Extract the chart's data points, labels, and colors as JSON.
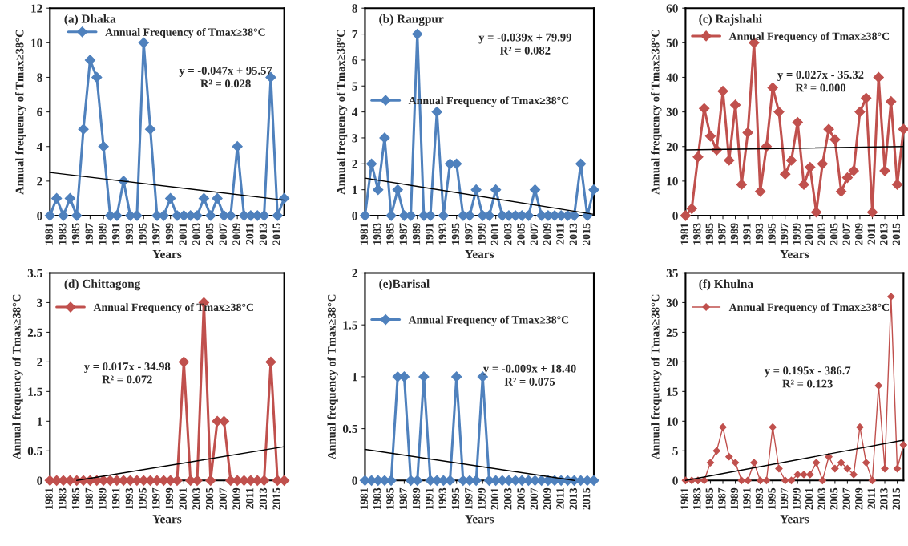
{
  "chart_data": [
    {
      "type": "line",
      "title": "(a) Dhaka",
      "xlabel": "Years",
      "ylabel": "Annual frequency of Tmax≥38°C",
      "annotations": [
        "y = -0.047x + 95.57\nR² = 0.028"
      ],
      "legend": "top",
      "xlim": [
        1981,
        2016
      ],
      "xticks": [
        1981,
        1983,
        1985,
        1987,
        1989,
        1991,
        1993,
        1995,
        1997,
        1999,
        2001,
        2003,
        2005,
        2007,
        2009,
        2011,
        2013,
        2015
      ],
      "ylim": [
        0,
        12
      ],
      "yticks": [
        0,
        2,
        4,
        6,
        8,
        10,
        12
      ],
      "x": [
        1981,
        1982,
        1983,
        1984,
        1985,
        1986,
        1987,
        1988,
        1989,
        1990,
        1991,
        1992,
        1993,
        1994,
        1995,
        1996,
        1997,
        1998,
        1999,
        2000,
        2001,
        2002,
        2003,
        2004,
        2005,
        2006,
        2007,
        2008,
        2009,
        2010,
        2011,
        2012,
        2013,
        2014,
        2015,
        2016
      ],
      "series": [
        {
          "name": "Annual Frequency of Tmax≥38°C",
          "color": "#4f81bd",
          "marker": "diamond",
          "values": [
            0,
            1,
            0,
            1,
            0,
            5,
            9,
            8,
            4,
            0,
            0,
            2,
            0,
            0,
            10,
            5,
            0,
            0,
            1,
            0,
            0,
            0,
            0,
            1,
            0,
            1,
            0,
            0,
            4,
            0,
            0,
            0,
            0,
            8,
            0,
            1
          ]
        },
        {
          "type": "line",
          "color": "#000000",
          "marker": "none",
          "x": [
            1981,
            2016
          ],
          "values": [
            2.5,
            0.9
          ]
        }
      ]
    },
    {
      "type": "line",
      "title": "(b) Rangpur",
      "xlabel": "Years",
      "ylabel": "Annual frequency of Tmax≥38°C",
      "annotations": [
        "y = -0.039x + 79.99\nR² = 0.082"
      ],
      "legend": "left",
      "xlim": [
        1981,
        2016
      ],
      "xticks": [
        1981,
        1983,
        1985,
        1987,
        1989,
        1991,
        1993,
        1995,
        1997,
        1999,
        2001,
        2003,
        2005,
        2007,
        2009,
        2011,
        2013,
        2015
      ],
      "ylim": [
        0,
        8
      ],
      "yticks": [
        0,
        1,
        2,
        3,
        4,
        5,
        6,
        7,
        8
      ],
      "x": [
        1981,
        1982,
        1983,
        1984,
        1985,
        1986,
        1987,
        1988,
        1989,
        1990,
        1991,
        1992,
        1993,
        1994,
        1995,
        1996,
        1997,
        1998,
        1999,
        2000,
        2001,
        2002,
        2003,
        2004,
        2005,
        2006,
        2007,
        2008,
        2009,
        2010,
        2011,
        2012,
        2013,
        2014,
        2015,
        2016
      ],
      "series": [
        {
          "name": "Annual Frequency of Tmax≥38°C",
          "color": "#4f81bd",
          "marker": "diamond",
          "values": [
            0,
            2,
            1,
            3,
            0,
            1,
            0,
            0,
            7,
            0,
            0,
            4,
            0,
            2,
            2,
            0,
            0,
            1,
            0,
            0,
            1,
            0,
            0,
            0,
            0,
            0,
            1,
            0,
            0,
            0,
            0,
            0,
            0,
            2,
            0,
            1
          ]
        },
        {
          "type": "line",
          "color": "#000000",
          "marker": "none",
          "x": [
            1981,
            2016
          ],
          "values": [
            1.45,
            0.05
          ]
        }
      ]
    },
    {
      "type": "line",
      "title": "(c) Rajshahi",
      "xlabel": "Years",
      "ylabel": "Annual frequency of Tmax≥38°C",
      "annotations": [
        "y = 0.027x - 35.32\nR² = 0.000"
      ],
      "legend": "top left",
      "xlim": [
        1981,
        2016
      ],
      "xticks": [
        1981,
        1983,
        1985,
        1987,
        1989,
        1991,
        1993,
        1995,
        1997,
        1999,
        2001,
        2003,
        2005,
        2007,
        2009,
        2011,
        2013,
        2015
      ],
      "ylim": [
        0,
        60
      ],
      "yticks": [
        0,
        10,
        20,
        30,
        40,
        50,
        60
      ],
      "x": [
        1981,
        1982,
        1983,
        1984,
        1985,
        1986,
        1987,
        1988,
        1989,
        1990,
        1991,
        1992,
        1993,
        1994,
        1995,
        1996,
        1997,
        1998,
        1999,
        2000,
        2001,
        2002,
        2003,
        2004,
        2005,
        2006,
        2007,
        2008,
        2009,
        2010,
        2011,
        2012,
        2013,
        2014,
        2015,
        2016
      ],
      "series": [
        {
          "name": "Annual Frequency of Tmax≥38°C",
          "color": "#c0504d",
          "marker": "diamond",
          "values": [
            0,
            2,
            17,
            31,
            23,
            19,
            36,
            16,
            32,
            9,
            24,
            50,
            7,
            20,
            37,
            30,
            12,
            16,
            27,
            9,
            14,
            1,
            15,
            25,
            22,
            7,
            11,
            13,
            30,
            34,
            1,
            40,
            13,
            33,
            9,
            25
          ]
        },
        {
          "type": "line",
          "color": "#000000",
          "marker": "none",
          "x": [
            1981,
            2016
          ],
          "values": [
            19,
            20
          ]
        }
      ]
    },
    {
      "type": "line",
      "title": "(d) Chittagong",
      "xlabel": "Years",
      "ylabel": "Annual frequency of Tmax≥38°C",
      "annotations": [
        "y = 0.017x - 34.98\nR² = 0.072"
      ],
      "legend": "top left",
      "xlim": [
        1981,
        2016
      ],
      "xticks": [
        1981,
        1983,
        1985,
        1987,
        1989,
        1991,
        1993,
        1995,
        1997,
        1999,
        2001,
        2003,
        2005,
        2007,
        2009,
        2011,
        2013,
        2015
      ],
      "ylim": [
        0,
        3.5
      ],
      "yticks": [
        0,
        0.5,
        1,
        1.5,
        2,
        2.5,
        3,
        3.5
      ],
      "x": [
        1981,
        1982,
        1983,
        1984,
        1985,
        1986,
        1987,
        1988,
        1989,
        1990,
        1991,
        1992,
        1993,
        1994,
        1995,
        1996,
        1997,
        1998,
        1999,
        2000,
        2001,
        2002,
        2003,
        2004,
        2005,
        2006,
        2007,
        2008,
        2009,
        2010,
        2011,
        2012,
        2013,
        2014,
        2015,
        2016
      ],
      "series": [
        {
          "name": "Annual Frequency of Tmax≥38°C",
          "color": "#c0504d",
          "marker": "diamond",
          "values": [
            0,
            0,
            0,
            0,
            0,
            0,
            0,
            0,
            0,
            0,
            0,
            0,
            0,
            0,
            0,
            0,
            0,
            0,
            0,
            0,
            2,
            0,
            0,
            3,
            0,
            1,
            1,
            0,
            0,
            0,
            0,
            0,
            0,
            2,
            0,
            0
          ]
        },
        {
          "type": "line",
          "color": "#000000",
          "marker": "none",
          "x": [
            1985,
            2016
          ],
          "values": [
            0,
            0.57
          ]
        }
      ]
    },
    {
      "type": "line",
      "title": "(e)Barisal",
      "xlabel": "Years",
      "ylabel": "Annual frequency of Tmax≥38°C",
      "annotations": [
        "y = -0.009x + 18.40\nR² = 0.075"
      ],
      "legend": "top left",
      "xlim": [
        1981,
        2016
      ],
      "xticks": [
        1981,
        1983,
        1985,
        1987,
        1989,
        1991,
        1993,
        1995,
        1997,
        1999,
        2001,
        2003,
        2005,
        2007,
        2009,
        2011,
        2013,
        2015
      ],
      "ylim": [
        0,
        2
      ],
      "yticks": [
        0,
        0.5,
        1,
        1.5,
        2
      ],
      "x": [
        1981,
        1982,
        1983,
        1984,
        1985,
        1986,
        1987,
        1988,
        1989,
        1990,
        1991,
        1992,
        1993,
        1994,
        1995,
        1996,
        1997,
        1998,
        1999,
        2000,
        2001,
        2002,
        2003,
        2004,
        2005,
        2006,
        2007,
        2008,
        2009,
        2010,
        2011,
        2012,
        2013,
        2014,
        2015,
        2016
      ],
      "series": [
        {
          "name": "Annual Frequency of Tmax≥38°C",
          "color": "#4f81bd",
          "marker": "diamond",
          "values": [
            0,
            0,
            0,
            0,
            0,
            1,
            1,
            0,
            0,
            1,
            0,
            0,
            0,
            0,
            1,
            0,
            0,
            0,
            1,
            0,
            0,
            0,
            0,
            0,
            0,
            0,
            0,
            0,
            0,
            0,
            0,
            0,
            0,
            0,
            0,
            0
          ]
        },
        {
          "type": "line",
          "color": "#000000",
          "marker": "none",
          "x": [
            1981,
            2013
          ],
          "values": [
            0.3,
            0
          ]
        }
      ]
    },
    {
      "type": "line",
      "title": "(f) Khulna",
      "xlabel": "Years",
      "ylabel": "Annual frequency of Tmax≥38°C",
      "annotations": [
        "y = 0.195x - 386.7\nR² = 0.123"
      ],
      "legend": "top left",
      "xlim": [
        1981,
        2016
      ],
      "xticks": [
        1981,
        1983,
        1985,
        1987,
        1989,
        1991,
        1993,
        1995,
        1997,
        1999,
        2001,
        2003,
        2005,
        2007,
        2009,
        2011,
        2013,
        2015
      ],
      "ylim": [
        0,
        35
      ],
      "yticks": [
        0,
        5,
        10,
        15,
        20,
        25,
        30,
        35
      ],
      "x": [
        1981,
        1982,
        1983,
        1984,
        1985,
        1986,
        1987,
        1988,
        1989,
        1990,
        1991,
        1992,
        1993,
        1994,
        1995,
        1996,
        1997,
        1998,
        1999,
        2000,
        2001,
        2002,
        2003,
        2004,
        2005,
        2006,
        2007,
        2008,
        2009,
        2010,
        2011,
        2012,
        2013,
        2014,
        2015,
        2016
      ],
      "series": [
        {
          "name": "Annual Frequency of Tmax≥38°C",
          "color": "#c0504d",
          "marker": "diamond",
          "values": [
            0,
            0,
            0,
            0,
            3,
            5,
            9,
            4,
            3,
            0,
            0,
            3,
            0,
            0,
            9,
            2,
            0,
            0,
            1,
            1,
            1,
            3,
            0,
            4,
            2,
            3,
            2,
            1,
            9,
            3,
            0,
            16,
            2,
            31,
            2,
            6
          ]
        },
        {
          "type": "line",
          "color": "#000000",
          "marker": "none",
          "x": [
            1981,
            2016
          ],
          "values": [
            0,
            6.8
          ]
        }
      ]
    }
  ]
}
